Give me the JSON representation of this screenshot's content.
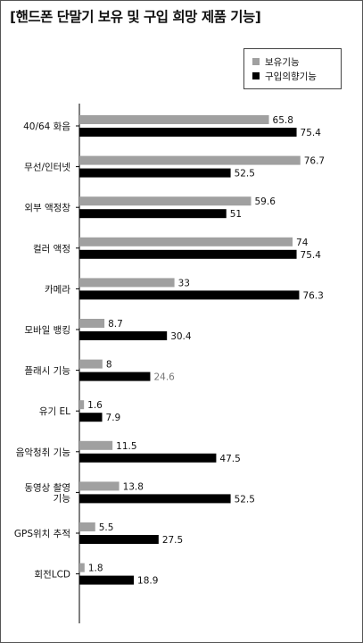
{
  "chart_data": {
    "type": "bar",
    "orientation": "horizontal",
    "title": "[핸드폰 단말기 보유 및 구입 희망 제품 기능]",
    "xlabel": "",
    "ylabel": "",
    "xlim": [
      0,
      85
    ],
    "grid": false,
    "legend": "top-right",
    "categories": [
      [
        "40/64 화음"
      ],
      [
        "무선/인터넷"
      ],
      [
        "외부 액정창"
      ],
      [
        "컬러 액정"
      ],
      [
        "카메라"
      ],
      [
        "모바일 뱅킹"
      ],
      [
        "플래시 기능"
      ],
      [
        "유기 EL"
      ],
      [
        "음악청취 기능"
      ],
      [
        "동영상 촬영",
        "기능"
      ],
      [
        "GPS위치 추적"
      ],
      [
        "회전LCD"
      ]
    ],
    "series": [
      {
        "name": "보유기능",
        "color": "#a0a0a0",
        "values": [
          65.8,
          76.7,
          59.6,
          74,
          33,
          8.7,
          8,
          1.6,
          11.5,
          13.8,
          5.5,
          1.8
        ],
        "labels": [
          "65.8",
          "76.7",
          "59.6",
          "74",
          "33",
          "8.7",
          "8",
          "1.6",
          "11.5",
          "13.8",
          "5.5",
          "1.8"
        ]
      },
      {
        "name": "구입의향기능",
        "color": "#000000",
        "values": [
          75.4,
          52.5,
          51,
          75.4,
          76.3,
          30.4,
          24.6,
          7.9,
          47.5,
          52.5,
          27.5,
          18.9
        ],
        "labels": [
          "75.4",
          "52.5",
          "51",
          "75.4",
          "76.3",
          "30.4",
          "24.6",
          "7.9",
          "47.5",
          "52.5",
          "27.5",
          "18.9"
        ]
      }
    ]
  }
}
